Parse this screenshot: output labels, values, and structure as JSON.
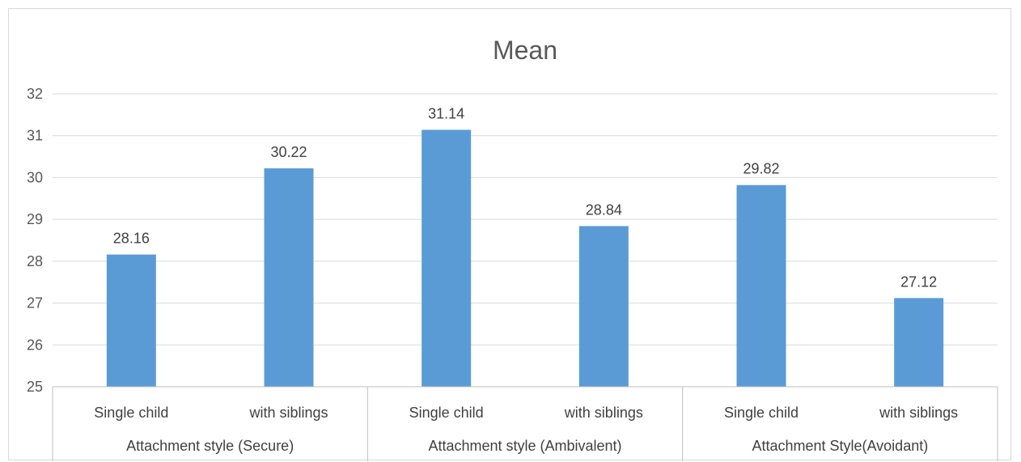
{
  "chart_data": {
    "type": "bar",
    "title": "Mean",
    "xlabel": "",
    "ylabel": "",
    "ylim": [
      25,
      32
    ],
    "yticks": [
      25,
      26,
      27,
      28,
      29,
      30,
      31,
      32
    ],
    "grid": true,
    "legend": "none",
    "groups": [
      {
        "label": "Attachment style (Secure)",
        "categories": [
          "Single child",
          "with siblings"
        ]
      },
      {
        "label": "Attachment style (Ambivalent)",
        "categories": [
          "Single child",
          "with siblings"
        ]
      },
      {
        "label": "Attachment Style(Avoidant)",
        "categories": [
          "Single child",
          "with siblings"
        ]
      }
    ],
    "categories": [
      "Single child",
      "with siblings",
      "Single child",
      "with siblings",
      "Single child",
      "with siblings"
    ],
    "values": [
      28.16,
      30.22,
      31.14,
      28.84,
      29.82,
      27.12
    ],
    "value_labels": [
      "28.16",
      "30.22",
      "31.14",
      "28.84",
      "29.82",
      "27.12"
    ],
    "bar_color": "#5b9bd5",
    "grid_color": "#d9d9d9",
    "axis_color": "#bfbfbf"
  }
}
